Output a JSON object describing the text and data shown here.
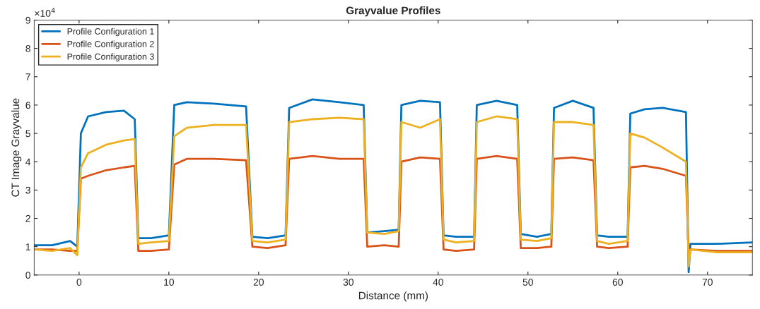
{
  "chart_data": {
    "type": "line",
    "title": "Grayvalue Profiles",
    "xlabel": "Distance (mm)",
    "ylabel": "CT Image Grayvalue",
    "x": [
      -5,
      -3,
      -1,
      -0.2,
      0.2,
      1,
      3,
      5,
      6.2,
      6.6,
      8,
      10,
      10.6,
      12,
      15,
      18.6,
      19.3,
      21,
      23,
      23.4,
      26,
      29,
      31.7,
      32.1,
      34,
      35.6,
      35.9,
      38,
      40.2,
      40.6,
      42,
      44,
      44.3,
      46.5,
      48.8,
      49.2,
      51,
      52.6,
      52.9,
      55,
      57.3,
      57.7,
      59,
      61.1,
      61.4,
      63,
      65,
      67.6,
      67.9,
      68.1,
      71,
      75
    ],
    "series": [
      {
        "name": "Profile Configuration 1",
        "color": "#0072bd",
        "values": [
          1.05,
          1.05,
          1.2,
          1.0,
          5.0,
          5.6,
          5.75,
          5.8,
          5.5,
          1.3,
          1.3,
          1.4,
          6.0,
          6.1,
          6.05,
          5.95,
          1.35,
          1.3,
          1.4,
          5.9,
          6.2,
          6.1,
          6.0,
          1.5,
          1.55,
          1.6,
          6.0,
          6.15,
          6.1,
          1.4,
          1.35,
          1.35,
          6.0,
          6.15,
          6.0,
          1.45,
          1.35,
          1.45,
          5.9,
          6.15,
          5.9,
          1.4,
          1.35,
          1.35,
          5.7,
          5.85,
          5.9,
          5.75,
          0.1,
          1.1,
          1.1,
          1.15
        ]
      },
      {
        "name": "Profile Configuration 2",
        "color": "#d95319",
        "values": [
          0.9,
          0.9,
          0.85,
          0.85,
          3.4,
          3.5,
          3.7,
          3.8,
          3.85,
          0.85,
          0.85,
          0.9,
          3.9,
          4.1,
          4.1,
          4.05,
          1.0,
          0.95,
          1.05,
          4.1,
          4.2,
          4.1,
          4.1,
          1.0,
          1.05,
          1.0,
          4.0,
          4.15,
          4.1,
          0.9,
          0.85,
          0.9,
          4.1,
          4.2,
          4.1,
          0.95,
          0.95,
          1.0,
          4.1,
          4.15,
          4.05,
          1.0,
          0.95,
          1.0,
          3.8,
          3.85,
          3.75,
          3.5,
          0.6,
          0.9,
          0.85,
          0.85
        ]
      },
      {
        "name": "Profile Configuration 3",
        "color": "#edb120",
        "values": [
          0.9,
          0.85,
          0.95,
          0.7,
          3.8,
          4.3,
          4.6,
          4.75,
          4.8,
          1.1,
          1.15,
          1.2,
          4.9,
          5.2,
          5.3,
          5.3,
          1.2,
          1.15,
          1.25,
          5.4,
          5.5,
          5.55,
          5.5,
          1.5,
          1.45,
          1.55,
          5.4,
          5.2,
          5.5,
          1.25,
          1.15,
          1.2,
          5.4,
          5.6,
          5.5,
          1.25,
          1.2,
          1.3,
          5.4,
          5.4,
          5.3,
          1.2,
          1.1,
          1.2,
          5.0,
          4.85,
          4.5,
          4.0,
          0.3,
          0.9,
          0.8,
          0.8
        ]
      }
    ],
    "xlim": [
      -5,
      75
    ],
    "xticks": [
      0,
      10,
      20,
      30,
      40,
      50,
      60,
      70
    ],
    "ylim": [
      0,
      9
    ],
    "yticks": [
      0,
      1,
      2,
      3,
      4,
      5,
      6,
      7,
      8,
      9
    ],
    "annotations": [
      "×10$^{4}$"
    ],
    "legend": "top left",
    "grid": false,
    "line_style": "solid",
    "marker": "none"
  }
}
